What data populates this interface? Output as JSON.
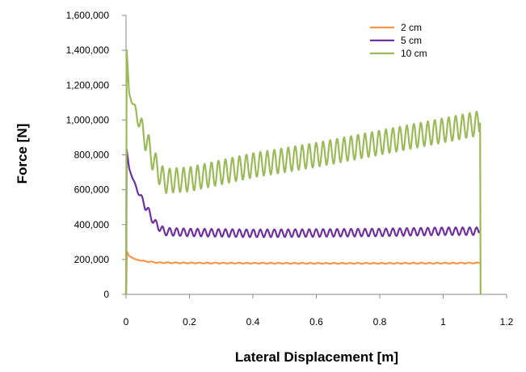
{
  "chart_data": {
    "type": "line",
    "title": "",
    "xlabel": "Lateral Displacement [m]",
    "ylabel": "Force [N]",
    "xlim": [
      0,
      1.2
    ],
    "ylim": [
      0,
      1600000
    ],
    "x_ticks": [
      0,
      0.2,
      0.4,
      0.6,
      0.8,
      1,
      1.2
    ],
    "x_tick_labels": [
      "0",
      "0.2",
      "0.4",
      "0.6",
      "0.8",
      "1",
      "1.2"
    ],
    "y_ticks": [
      0,
      200000,
      400000,
      600000,
      800000,
      1000000,
      1200000,
      1400000,
      1600000
    ],
    "y_tick_labels": [
      "0",
      "200,000",
      "400,000",
      "600,000",
      "800,000",
      "1,000,000",
      "1,200,000",
      "1,400,000",
      "1,600,000"
    ],
    "grid": false,
    "legend_position": "top-right",
    "series": [
      {
        "name": "2 cm",
        "color": "#f79646",
        "x": [
          0,
          0.002,
          0.01,
          0.03,
          0.06,
          0.1,
          0.2,
          0.4,
          0.6,
          0.8,
          1.0,
          1.115,
          1.117
        ],
        "y": [
          0,
          245000,
          220000,
          200000,
          190000,
          182000,
          180000,
          179000,
          178000,
          178000,
          179000,
          180000,
          180000
        ],
        "oscillation_amplitude": 2500,
        "oscillation_period": 0.025
      },
      {
        "name": "5 cm",
        "color": "#7030a0",
        "x": [
          0,
          0.002,
          0.01,
          0.03,
          0.06,
          0.09,
          0.12,
          0.2,
          0.4,
          0.6,
          0.8,
          1.0,
          1.11,
          1.117
        ],
        "y": [
          0,
          830000,
          720000,
          620000,
          510000,
          410000,
          360000,
          355000,
          350000,
          352000,
          355000,
          362000,
          362000,
          360000
        ],
        "oscillation_amplitude": 22000,
        "oscillation_period": 0.022
      },
      {
        "name": "10 cm",
        "color": "#9bbb59",
        "x": [
          0,
          0.002,
          0.01,
          0.03,
          0.06,
          0.09,
          0.12,
          0.2,
          0.4,
          0.6,
          0.8,
          1.0,
          1.11,
          1.117,
          1.118
        ],
        "y": [
          0,
          1400000,
          1150000,
          1050000,
          900000,
          750000,
          650000,
          660000,
          740000,
          800000,
          870000,
          940000,
          980000,
          980000,
          0
        ],
        "oscillation_amplitude": 70000,
        "oscillation_period": 0.022
      }
    ]
  }
}
